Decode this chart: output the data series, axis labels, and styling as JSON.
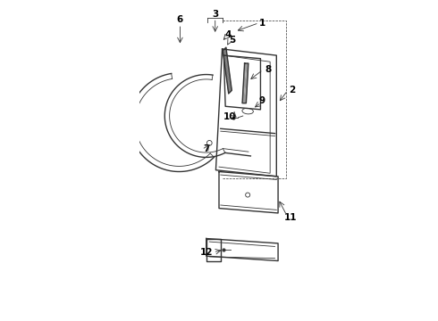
{
  "bg_color": "#ffffff",
  "line_color": "#333333",
  "label_color": "#000000",
  "labels": [
    "1",
    "2",
    "3",
    "4",
    "5",
    "6",
    "7",
    "8",
    "9",
    "10",
    "11",
    "12"
  ]
}
